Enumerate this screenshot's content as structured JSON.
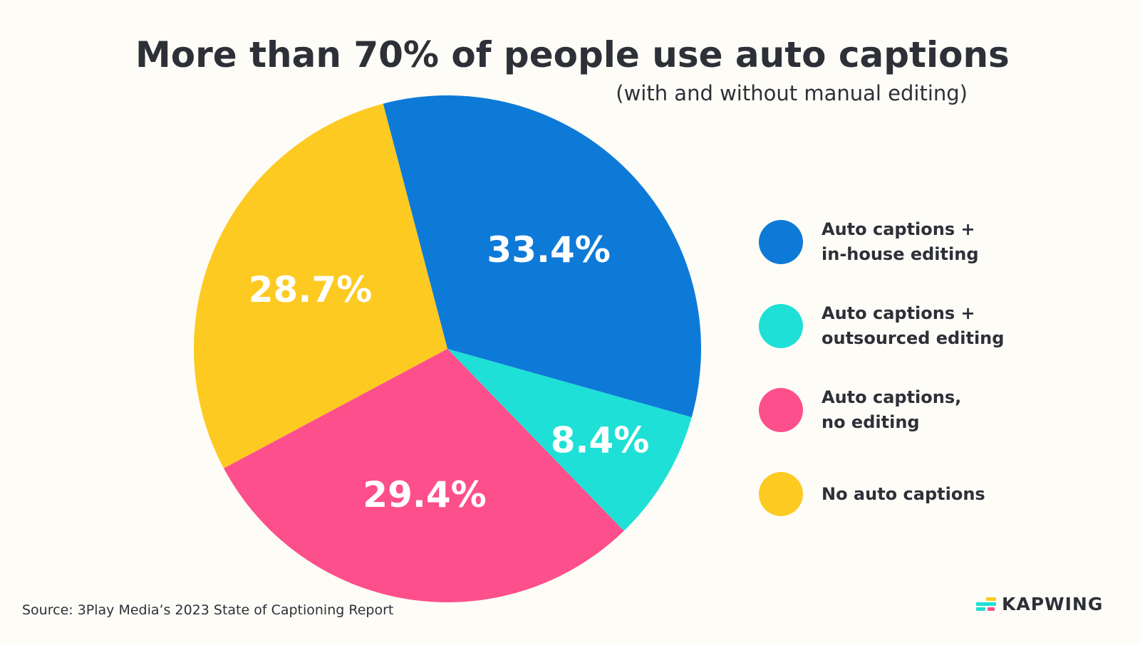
{
  "chart_data": {
    "type": "pie",
    "title": "More than 70% of people use auto captions",
    "subtitle": "(with and without manual editing)",
    "start_angle_deg": -14.7,
    "direction": "clockwise",
    "legend_position": "right",
    "slices": [
      {
        "name": "Auto captions + in-house editing",
        "label": "33.4%",
        "value": 33.4,
        "color": "#0e7ad8"
      },
      {
        "name": "Auto captions + outsourced editing",
        "label": "8.4%",
        "value": 8.4,
        "color": "#1ee0d6"
      },
      {
        "name": "Auto captions, no editing",
        "label": "29.4%",
        "value": 29.4,
        "color": "#fd4f8b"
      },
      {
        "name": "No auto captions",
        "label": "28.7%",
        "value": 28.7,
        "color": "#fdca22"
      }
    ],
    "legend": [
      {
        "line1": "Auto captions +",
        "line2": "in-house editing"
      },
      {
        "line1": "Auto captions +",
        "line2": "outsourced editing"
      },
      {
        "line1": "Auto captions,",
        "line2": "no editing"
      },
      {
        "line1": "No auto captions",
        "line2": ""
      }
    ]
  },
  "source": "Source: 3Play Media’s 2023 State of Captioning Report",
  "logo": {
    "text": "KAPWING",
    "colors": [
      "#fdca22",
      "#1ee0d6",
      "#fd4f8b"
    ]
  }
}
